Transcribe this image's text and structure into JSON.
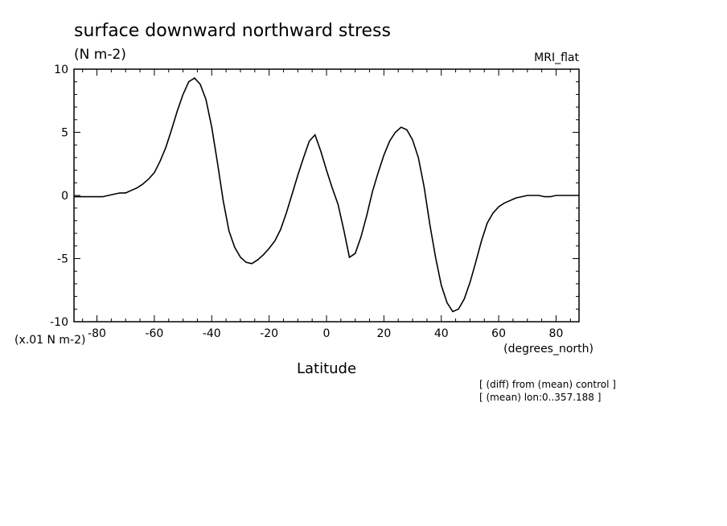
{
  "chart_data": {
    "type": "line",
    "title": "surface downward northward stress",
    "units": "(N m-2)",
    "model_label": "MRI_flat",
    "scale_note": "(x.01 N m-2)",
    "xlabel": "Latitude",
    "x_units": "(degrees_north)",
    "notes": [
      "[ (diff) from (mean) control ]",
      "[ (mean) lon:0..357.188 ]"
    ],
    "xlim": [
      -88,
      88
    ],
    "ylim": [
      -10,
      10
    ],
    "x_ticks": [
      -80,
      -60,
      -40,
      -20,
      0,
      20,
      40,
      60,
      80
    ],
    "y_ticks": [
      10,
      5,
      0,
      -5,
      -10
    ],
    "x_tick_labels": [
      "-80",
      "-60",
      "-40",
      "-20",
      "0",
      "20",
      "40",
      "60",
      "80"
    ],
    "y_tick_labels": [
      "10",
      "5",
      "0",
      "-5",
      "-10"
    ],
    "line_color": "#000000",
    "x": [
      -88,
      -86,
      -84,
      -82,
      -80,
      -78,
      -76,
      -74,
      -72,
      -70,
      -68,
      -66,
      -64,
      -62,
      -60,
      -58,
      -56,
      -54,
      -52,
      -50,
      -48,
      -46,
      -44,
      -42,
      -40,
      -38,
      -36,
      -34,
      -32,
      -30,
      -28,
      -26,
      -24,
      -22,
      -20,
      -18,
      -16,
      -14,
      -12,
      -10,
      -8,
      -6,
      -4,
      -2,
      0,
      2,
      4,
      6,
      8,
      10,
      12,
      14,
      16,
      18,
      20,
      22,
      24,
      26,
      28,
      30,
      32,
      34,
      36,
      38,
      40,
      42,
      44,
      46,
      48,
      50,
      52,
      54,
      56,
      58,
      60,
      62,
      64,
      66,
      68,
      70,
      72,
      74,
      76,
      78,
      80,
      82,
      84,
      86,
      88
    ],
    "y": [
      -0.1,
      -0.1,
      -0.1,
      -0.1,
      -0.1,
      -0.1,
      0.0,
      0.1,
      0.2,
      0.2,
      0.4,
      0.6,
      0.9,
      1.3,
      1.8,
      2.7,
      3.8,
      5.2,
      6.7,
      8.0,
      9.0,
      9.3,
      8.8,
      7.6,
      5.4,
      2.6,
      -0.4,
      -2.8,
      -4.1,
      -4.9,
      -5.3,
      -5.4,
      -5.1,
      -4.7,
      -4.2,
      -3.6,
      -2.7,
      -1.4,
      0.1,
      1.6,
      3.0,
      4.3,
      4.8,
      3.5,
      2.0,
      0.6,
      -0.7,
      -2.7,
      -4.9,
      -4.6,
      -3.3,
      -1.6,
      0.3,
      1.8,
      3.2,
      4.3,
      5.0,
      5.4,
      5.2,
      4.4,
      3.0,
      0.7,
      -2.3,
      -4.9,
      -7.1,
      -8.5,
      -9.2,
      -9.0,
      -8.2,
      -6.9,
      -5.3,
      -3.6,
      -2.2,
      -1.4,
      -0.9,
      -0.6,
      -0.4,
      -0.2,
      -0.1,
      0.0,
      0.0,
      0.0,
      -0.1,
      -0.1,
      0.0,
      0.0,
      0.0,
      0.0,
      0.0
    ],
    "grid": false,
    "legend": "none"
  }
}
